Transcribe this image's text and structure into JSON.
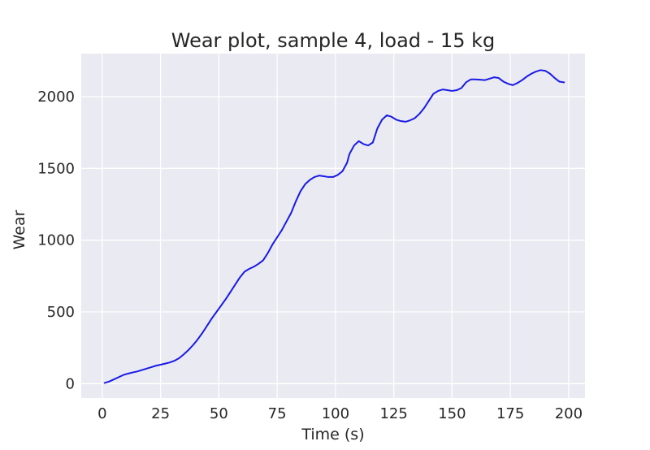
{
  "chart_data": {
    "type": "line",
    "title": "Wear plot, sample 4, load - 15 kg",
    "xlabel": "Time (s)",
    "ylabel": "Wear",
    "xlim": [
      -9,
      207
    ],
    "ylim": [
      -100,
      2300
    ],
    "xticks": [
      0,
      25,
      50,
      75,
      100,
      125,
      150,
      175,
      200
    ],
    "yticks": [
      0,
      500,
      1000,
      1500,
      2000
    ],
    "grid": true,
    "line_color": "#1a1ae6",
    "background_color": "#eaeaf2",
    "series": [
      {
        "x": [
          1,
          3,
          5,
          7,
          9,
          11,
          13,
          15,
          17,
          19,
          21,
          23,
          25,
          27,
          29,
          31,
          33,
          35,
          37,
          39,
          41,
          43,
          45,
          47,
          49,
          51,
          53,
          55,
          57,
          59,
          61,
          63,
          65,
          67,
          69,
          71,
          73,
          75,
          77,
          79,
          81,
          83,
          85,
          87,
          89,
          91,
          93,
          95,
          97,
          99,
          101,
          103,
          105,
          106,
          108,
          110,
          112,
          114,
          116,
          118,
          120,
          122,
          124,
          126,
          128,
          130,
          132,
          134,
          136,
          138,
          140,
          142,
          144,
          146,
          148,
          150,
          152,
          154,
          156,
          158,
          160,
          162,
          164,
          166,
          168,
          170,
          172,
          174,
          176,
          178,
          180,
          182,
          184,
          186,
          188,
          190,
          192,
          194,
          196,
          198
        ],
        "y": [
          5,
          15,
          30,
          45,
          60,
          70,
          78,
          85,
          95,
          105,
          115,
          125,
          132,
          140,
          148,
          160,
          178,
          205,
          235,
          270,
          310,
          355,
          405,
          455,
          500,
          545,
          590,
          640,
          690,
          740,
          780,
          800,
          815,
          835,
          860,
          910,
          970,
          1020,
          1070,
          1130,
          1190,
          1270,
          1340,
          1390,
          1420,
          1440,
          1450,
          1445,
          1440,
          1440,
          1455,
          1480,
          1540,
          1600,
          1660,
          1690,
          1670,
          1660,
          1680,
          1780,
          1840,
          1870,
          1860,
          1840,
          1830,
          1825,
          1835,
          1850,
          1880,
          1920,
          1970,
          2020,
          2040,
          2050,
          2045,
          2040,
          2045,
          2060,
          2100,
          2120,
          2120,
          2118,
          2115,
          2125,
          2135,
          2130,
          2105,
          2090,
          2080,
          2095,
          2115,
          2140,
          2160,
          2175,
          2185,
          2180,
          2160,
          2130,
          2105,
          2100
        ]
      }
    ]
  }
}
